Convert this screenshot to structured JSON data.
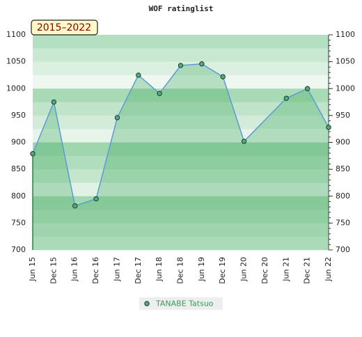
{
  "chart_data": {
    "type": "area",
    "title": "WOF ratinglist",
    "badge": "2015–2022",
    "categories": [
      "Jun 15",
      "Dec 15",
      "Jun 16",
      "Dec 16",
      "Jun 17",
      "Dec 17",
      "Jun 18",
      "Dec 18",
      "Jun 19",
      "Dec 19",
      "Jun 20",
      "Dec 20",
      "Jun 21",
      "Dec 21",
      "Jun 22"
    ],
    "series": [
      {
        "name": "TANABE Tatsuo",
        "color": "#5b9bd5",
        "marker_color": "#4caf6a",
        "x": [
          "Jun 15",
          "Dec 15",
          "Jun 16",
          "Dec 16",
          "Jun 17",
          "Dec 17",
          "Jun 18",
          "Dec 18",
          "Jun 19",
          "Dec 19",
          "Jun 20",
          "Jun 21",
          "Dec 21",
          "Jun 22"
        ],
        "values": [
          879,
          975,
          782,
          795,
          946,
          1025,
          991,
          1043,
          1046,
          1022,
          902,
          982,
          1000,
          928
        ]
      }
    ],
    "ylim": [
      700,
      1100
    ],
    "yticks": [
      700,
      750,
      800,
      850,
      900,
      950,
      1000,
      1050,
      1100
    ]
  }
}
